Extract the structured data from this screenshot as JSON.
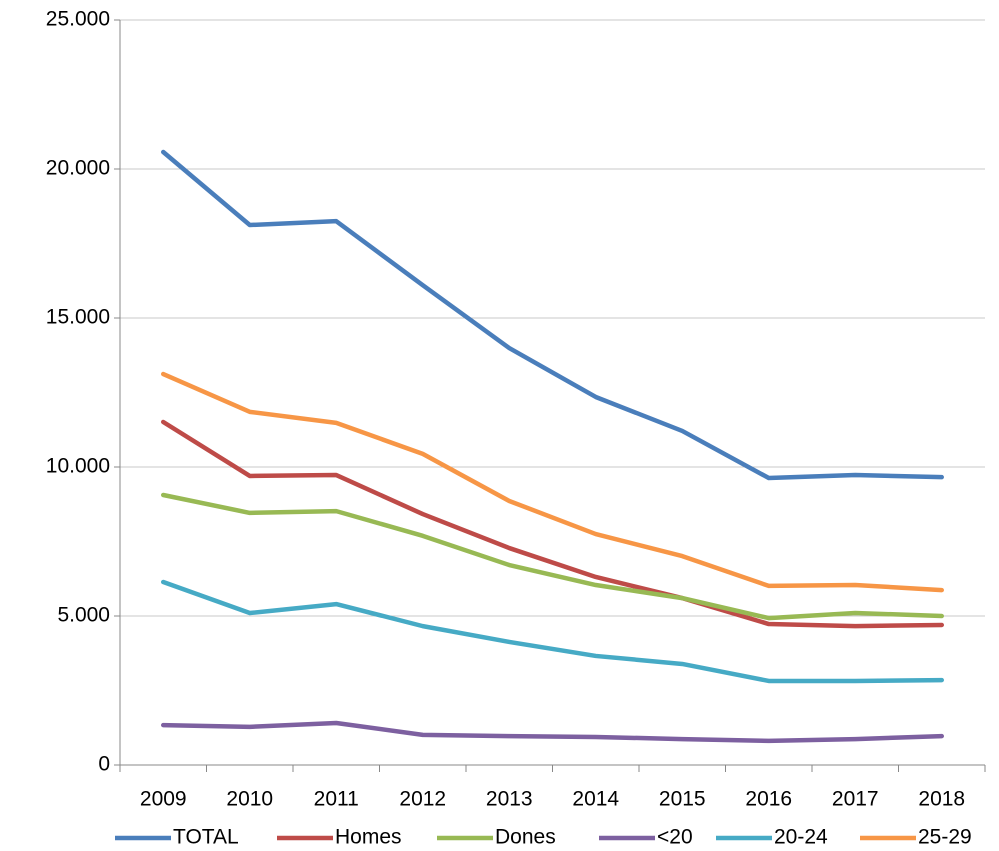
{
  "chart_data": {
    "type": "line",
    "categories": [
      "2009",
      "2010",
      "2011",
      "2012",
      "2013",
      "2014",
      "2015",
      "2016",
      "2017",
      "2018"
    ],
    "series": [
      {
        "name": "TOTAL",
        "color": "#4a7ebb",
        "values": [
          20570,
          18120,
          18250,
          16100,
          13990,
          12350,
          11210,
          9630,
          9730,
          9660
        ]
      },
      {
        "name": "Homes",
        "color": "#be4b48",
        "values": [
          11510,
          9700,
          9730,
          8420,
          7280,
          6310,
          5600,
          4730,
          4660,
          4700
        ]
      },
      {
        "name": "Dones",
        "color": "#98b954",
        "values": [
          9060,
          8460,
          8520,
          7690,
          6710,
          6040,
          5600,
          4930,
          5100,
          5000
        ]
      },
      {
        "name": "<20",
        "color": "#7d60a0",
        "values": [
          1340,
          1280,
          1410,
          1010,
          970,
          940,
          870,
          810,
          870,
          970
        ]
      },
      {
        "name": "20-24",
        "color": "#46aac5",
        "values": [
          6140,
          5100,
          5400,
          4660,
          4130,
          3660,
          3390,
          2820,
          2820,
          2850
        ]
      },
      {
        "name": "25-29",
        "color": "#f79646",
        "values": [
          13120,
          11850,
          11480,
          10440,
          8860,
          7750,
          7010,
          6010,
          6040,
          5870
        ]
      }
    ],
    "ylim": [
      0,
      25000
    ],
    "yticks": [
      0,
      {
        "value": 5000,
        "label": "5.000"
      },
      {
        "value": 10000,
        "label": "10.000"
      },
      {
        "value": 15000,
        "label": "15.000"
      },
      {
        "value": 20000,
        "label": "20.000"
      },
      {
        "value": 25000,
        "label": "25.000"
      }
    ],
    "grid": true,
    "legend": "bottom"
  }
}
